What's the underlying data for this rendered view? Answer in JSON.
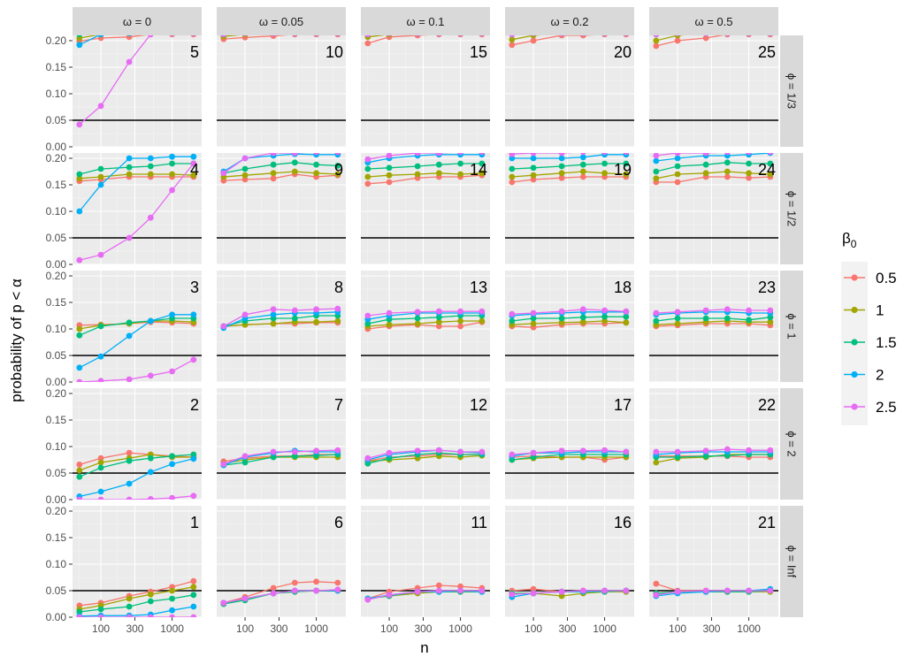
{
  "chart_data": {
    "type": "line",
    "ylabel": "probability of p < α",
    "xlabel": "n",
    "x_scale": "log",
    "x": [
      50,
      100,
      250,
      500,
      1000,
      2000
    ],
    "xticks": [
      100,
      300,
      1000
    ],
    "xtick_labels": [
      "100",
      "300",
      "1000"
    ],
    "ylim": [
      0,
      0.21
    ],
    "yticks": [
      0,
      0.05,
      0.1,
      0.15,
      0.2
    ],
    "ytick_labels": [
      "0.00",
      "0.05",
      "0.10",
      "0.15",
      "0.20"
    ],
    "reference_line": 0.05,
    "grid": true,
    "legend": {
      "title_base": "β",
      "title_sub": "0",
      "placement": "right",
      "entries": [
        "0.5",
        "1",
        "1.5",
        "2",
        "2.5"
      ]
    },
    "series_colors": [
      "#F8766D",
      "#A3A500",
      "#00BF7D",
      "#00B0F6",
      "#E76BF3"
    ],
    "columns": [
      "ω = 0",
      "ω = 0.05",
      "ω = 0.1",
      "ω = 0.2",
      "ω = 0.5"
    ],
    "rows": [
      "ϕ = 1/3",
      "ϕ = 1/2",
      "ϕ = 1",
      "ϕ = 2",
      "ϕ = Inf"
    ],
    "panels": [
      {
        "id": "5",
        "series": [
          [
            0.199,
            0.205,
            0.207,
            0.212,
            0.212,
            0.212
          ],
          [
            0.205,
            0.212,
            0.214,
            0.214,
            0.214,
            0.214
          ],
          [
            0.212,
            0.214,
            0.214,
            0.214,
            0.214,
            0.214
          ],
          [
            0.192,
            0.212,
            0.214,
            0.214,
            0.214,
            0.214
          ],
          [
            0.042,
            0.077,
            0.16,
            0.212,
            0.214,
            0.214
          ]
        ]
      },
      {
        "id": "10",
        "series": [
          [
            0.203,
            0.206,
            0.209,
            0.212,
            0.212,
            0.212
          ],
          [
            0.208,
            0.212,
            0.214,
            0.214,
            0.214,
            0.214
          ],
          [
            0.212,
            0.214,
            0.214,
            0.214,
            0.214,
            0.214
          ],
          [
            0.212,
            0.214,
            0.214,
            0.214,
            0.214,
            0.214
          ],
          [
            0.212,
            0.214,
            0.214,
            0.214,
            0.214,
            0.214
          ]
        ]
      },
      {
        "id": "15",
        "series": [
          [
            0.195,
            0.207,
            0.21,
            0.212,
            0.212,
            0.212
          ],
          [
            0.207,
            0.212,
            0.214,
            0.214,
            0.214,
            0.214
          ],
          [
            0.212,
            0.214,
            0.214,
            0.214,
            0.214,
            0.214
          ],
          [
            0.212,
            0.214,
            0.214,
            0.214,
            0.214,
            0.214
          ],
          [
            0.212,
            0.214,
            0.214,
            0.214,
            0.214,
            0.214
          ]
        ]
      },
      {
        "id": "20",
        "series": [
          [
            0.192,
            0.2,
            0.21,
            0.21,
            0.212,
            0.212
          ],
          [
            0.202,
            0.21,
            0.214,
            0.214,
            0.214,
            0.214
          ],
          [
            0.212,
            0.214,
            0.214,
            0.214,
            0.214,
            0.214
          ],
          [
            0.212,
            0.214,
            0.214,
            0.214,
            0.214,
            0.214
          ],
          [
            0.212,
            0.214,
            0.214,
            0.214,
            0.214,
            0.214
          ]
        ]
      },
      {
        "id": "25",
        "series": [
          [
            0.19,
            0.2,
            0.205,
            0.212,
            0.212,
            0.212
          ],
          [
            0.2,
            0.21,
            0.214,
            0.214,
            0.214,
            0.214
          ],
          [
            0.212,
            0.214,
            0.214,
            0.214,
            0.214,
            0.214
          ],
          [
            0.212,
            0.214,
            0.214,
            0.214,
            0.214,
            0.214
          ],
          [
            0.212,
            0.214,
            0.214,
            0.214,
            0.214,
            0.214
          ]
        ]
      },
      {
        "id": "4",
        "series": [
          [
            0.157,
            0.16,
            0.165,
            0.165,
            0.165,
            0.165
          ],
          [
            0.162,
            0.165,
            0.17,
            0.17,
            0.17,
            0.168
          ],
          [
            0.17,
            0.18,
            0.183,
            0.185,
            0.19,
            0.19
          ],
          [
            0.1,
            0.15,
            0.2,
            0.2,
            0.203,
            0.203
          ],
          [
            0.008,
            0.018,
            0.05,
            0.088,
            0.14,
            0.19
          ]
        ]
      },
      {
        "id": "9",
        "series": [
          [
            0.158,
            0.16,
            0.162,
            0.17,
            0.165,
            0.168
          ],
          [
            0.165,
            0.168,
            0.172,
            0.175,
            0.172,
            0.17
          ],
          [
            0.172,
            0.18,
            0.188,
            0.192,
            0.188,
            0.186
          ],
          [
            0.175,
            0.2,
            0.205,
            0.208,
            0.207,
            0.207
          ],
          [
            0.172,
            0.2,
            0.21,
            0.21,
            0.212,
            0.212
          ]
        ]
      },
      {
        "id": "14",
        "series": [
          [
            0.152,
            0.155,
            0.163,
            0.165,
            0.165,
            0.168
          ],
          [
            0.165,
            0.168,
            0.17,
            0.172,
            0.17,
            0.172
          ],
          [
            0.18,
            0.182,
            0.185,
            0.188,
            0.19,
            0.19
          ],
          [
            0.192,
            0.2,
            0.205,
            0.207,
            0.207,
            0.207
          ],
          [
            0.198,
            0.205,
            0.21,
            0.21,
            0.212,
            0.212
          ]
        ]
      },
      {
        "id": "19",
        "series": [
          [
            0.155,
            0.16,
            0.163,
            0.165,
            0.165,
            0.165
          ],
          [
            0.165,
            0.168,
            0.172,
            0.175,
            0.172,
            0.17
          ],
          [
            0.18,
            0.182,
            0.185,
            0.188,
            0.19,
            0.19
          ],
          [
            0.2,
            0.2,
            0.2,
            0.202,
            0.207,
            0.207
          ],
          [
            0.208,
            0.21,
            0.21,
            0.212,
            0.212,
            0.212
          ]
        ]
      },
      {
        "id": "24",
        "series": [
          [
            0.155,
            0.155,
            0.165,
            0.165,
            0.163,
            0.165
          ],
          [
            0.162,
            0.17,
            0.172,
            0.175,
            0.172,
            0.17
          ],
          [
            0.175,
            0.185,
            0.188,
            0.192,
            0.19,
            0.19
          ],
          [
            0.195,
            0.2,
            0.205,
            0.205,
            0.207,
            0.21
          ],
          [
            0.205,
            0.21,
            0.21,
            0.212,
            0.212,
            0.212
          ]
        ]
      },
      {
        "id": "3",
        "series": [
          [
            0.107,
            0.108,
            0.11,
            0.113,
            0.112,
            0.11
          ],
          [
            0.1,
            0.107,
            0.11,
            0.115,
            0.115,
            0.113
          ],
          [
            0.088,
            0.105,
            0.112,
            0.115,
            0.12,
            0.12
          ],
          [
            0.027,
            0.048,
            0.087,
            0.115,
            0.127,
            0.127
          ],
          [
            0.0,
            0.002,
            0.005,
            0.012,
            0.02,
            0.042
          ]
        ]
      },
      {
        "id": "8",
        "series": [
          [
            0.105,
            0.108,
            0.11,
            0.11,
            0.112,
            0.112
          ],
          [
            0.105,
            0.108,
            0.11,
            0.113,
            0.113,
            0.115
          ],
          [
            0.105,
            0.115,
            0.12,
            0.12,
            0.125,
            0.125
          ],
          [
            0.102,
            0.12,
            0.127,
            0.13,
            0.13,
            0.132
          ],
          [
            0.105,
            0.127,
            0.137,
            0.135,
            0.137,
            0.138
          ]
        ]
      },
      {
        "id": "13",
        "series": [
          [
            0.1,
            0.105,
            0.108,
            0.105,
            0.105,
            0.113
          ],
          [
            0.105,
            0.108,
            0.11,
            0.113,
            0.115,
            0.115
          ],
          [
            0.11,
            0.118,
            0.12,
            0.122,
            0.125,
            0.125
          ],
          [
            0.118,
            0.125,
            0.13,
            0.13,
            0.13,
            0.13
          ],
          [
            0.125,
            0.13,
            0.132,
            0.133,
            0.133,
            0.133
          ]
        ]
      },
      {
        "id": "18",
        "series": [
          [
            0.105,
            0.103,
            0.108,
            0.11,
            0.11,
            0.112
          ],
          [
            0.108,
            0.11,
            0.112,
            0.113,
            0.115,
            0.112
          ],
          [
            0.115,
            0.12,
            0.12,
            0.122,
            0.123,
            0.123
          ],
          [
            0.125,
            0.128,
            0.13,
            0.132,
            0.132,
            0.132
          ],
          [
            0.128,
            0.13,
            0.133,
            0.137,
            0.135,
            0.133
          ]
        ]
      },
      {
        "id": "23",
        "series": [
          [
            0.105,
            0.107,
            0.11,
            0.11,
            0.11,
            0.107
          ],
          [
            0.108,
            0.11,
            0.113,
            0.115,
            0.113,
            0.113
          ],
          [
            0.115,
            0.12,
            0.12,
            0.12,
            0.117,
            0.122
          ],
          [
            0.127,
            0.13,
            0.132,
            0.132,
            0.13,
            0.13
          ],
          [
            0.13,
            0.132,
            0.135,
            0.137,
            0.135,
            0.135
          ]
        ]
      },
      {
        "id": "2",
        "series": [
          [
            0.066,
            0.078,
            0.088,
            0.085,
            0.082,
            0.08
          ],
          [
            0.055,
            0.07,
            0.078,
            0.085,
            0.08,
            0.08
          ],
          [
            0.043,
            0.06,
            0.073,
            0.078,
            0.082,
            0.085
          ],
          [
            0.006,
            0.015,
            0.03,
            0.052,
            0.067,
            0.077
          ],
          [
            0.0,
            0.0,
            0.0,
            0.001,
            0.003,
            0.007
          ]
        ]
      },
      {
        "id": "7",
        "series": [
          [
            0.072,
            0.078,
            0.082,
            0.082,
            0.085,
            0.085
          ],
          [
            0.068,
            0.075,
            0.08,
            0.08,
            0.08,
            0.08
          ],
          [
            0.065,
            0.07,
            0.08,
            0.082,
            0.083,
            0.085
          ],
          [
            0.065,
            0.08,
            0.088,
            0.092,
            0.09,
            0.09
          ],
          [
            0.067,
            0.082,
            0.09,
            0.09,
            0.092,
            0.093
          ]
        ]
      },
      {
        "id": "12",
        "series": [
          [
            0.073,
            0.08,
            0.082,
            0.085,
            0.085,
            0.085
          ],
          [
            0.072,
            0.075,
            0.078,
            0.082,
            0.08,
            0.083
          ],
          [
            0.068,
            0.078,
            0.085,
            0.088,
            0.085,
            0.085
          ],
          [
            0.075,
            0.085,
            0.09,
            0.093,
            0.09,
            0.088
          ],
          [
            0.078,
            0.088,
            0.092,
            0.093,
            0.09,
            0.09
          ]
        ]
      },
      {
        "id": "17",
        "series": [
          [
            0.08,
            0.082,
            0.08,
            0.08,
            0.075,
            0.08
          ],
          [
            0.075,
            0.078,
            0.08,
            0.08,
            0.08,
            0.08
          ],
          [
            0.075,
            0.08,
            0.085,
            0.085,
            0.085,
            0.085
          ],
          [
            0.082,
            0.088,
            0.088,
            0.09,
            0.09,
            0.09
          ],
          [
            0.085,
            0.088,
            0.092,
            0.092,
            0.093,
            0.09
          ]
        ]
      },
      {
        "id": "22",
        "series": [
          [
            0.082,
            0.082,
            0.082,
            0.082,
            0.08,
            0.08
          ],
          [
            0.07,
            0.078,
            0.08,
            0.085,
            0.085,
            0.085
          ],
          [
            0.08,
            0.08,
            0.082,
            0.083,
            0.085,
            0.085
          ],
          [
            0.085,
            0.088,
            0.09,
            0.09,
            0.09,
            0.09
          ],
          [
            0.09,
            0.09,
            0.092,
            0.095,
            0.093,
            0.093
          ]
        ]
      },
      {
        "id": "1",
        "series": [
          [
            0.022,
            0.027,
            0.04,
            0.048,
            0.057,
            0.068
          ],
          [
            0.015,
            0.022,
            0.035,
            0.043,
            0.05,
            0.057
          ],
          [
            0.01,
            0.015,
            0.02,
            0.03,
            0.035,
            0.042
          ],
          [
            0.002,
            0.003,
            0.003,
            0.005,
            0.013,
            0.02
          ],
          [
            0.0,
            0.0,
            0.0,
            0.0,
            0.0,
            0.0
          ]
        ]
      },
      {
        "id": "6",
        "series": [
          [
            0.027,
            0.038,
            0.055,
            0.065,
            0.067,
            0.065
          ],
          [
            0.025,
            0.035,
            0.045,
            0.048,
            0.05,
            0.05
          ],
          [
            0.025,
            0.032,
            0.045,
            0.048,
            0.05,
            0.05
          ],
          [
            0.027,
            0.035,
            0.045,
            0.05,
            0.05,
            0.05
          ],
          [
            0.027,
            0.035,
            0.045,
            0.05,
            0.05,
            0.052
          ]
        ]
      },
      {
        "id": "11",
        "series": [
          [
            0.035,
            0.048,
            0.055,
            0.06,
            0.058,
            0.055
          ],
          [
            0.035,
            0.04,
            0.045,
            0.048,
            0.048,
            0.048
          ],
          [
            0.035,
            0.04,
            0.048,
            0.048,
            0.048,
            0.048
          ],
          [
            0.035,
            0.042,
            0.048,
            0.048,
            0.05,
            0.048
          ],
          [
            0.033,
            0.042,
            0.048,
            0.05,
            0.05,
            0.05
          ]
        ]
      },
      {
        "id": "16",
        "series": [
          [
            0.05,
            0.053,
            0.048,
            0.05,
            0.05,
            0.05
          ],
          [
            0.045,
            0.045,
            0.04,
            0.045,
            0.048,
            0.048
          ],
          [
            0.045,
            0.045,
            0.048,
            0.048,
            0.048,
            0.05
          ],
          [
            0.038,
            0.045,
            0.048,
            0.048,
            0.05,
            0.05
          ],
          [
            0.043,
            0.045,
            0.048,
            0.05,
            0.05,
            0.05
          ]
        ]
      },
      {
        "id": "21",
        "series": [
          [
            0.063,
            0.05,
            0.05,
            0.05,
            0.05,
            0.05
          ],
          [
            0.045,
            0.048,
            0.048,
            0.048,
            0.048,
            0.048
          ],
          [
            0.045,
            0.048,
            0.048,
            0.048,
            0.048,
            0.05
          ],
          [
            0.04,
            0.045,
            0.048,
            0.05,
            0.05,
            0.053
          ],
          [
            0.042,
            0.048,
            0.05,
            0.05,
            0.05,
            0.05
          ]
        ]
      }
    ]
  }
}
